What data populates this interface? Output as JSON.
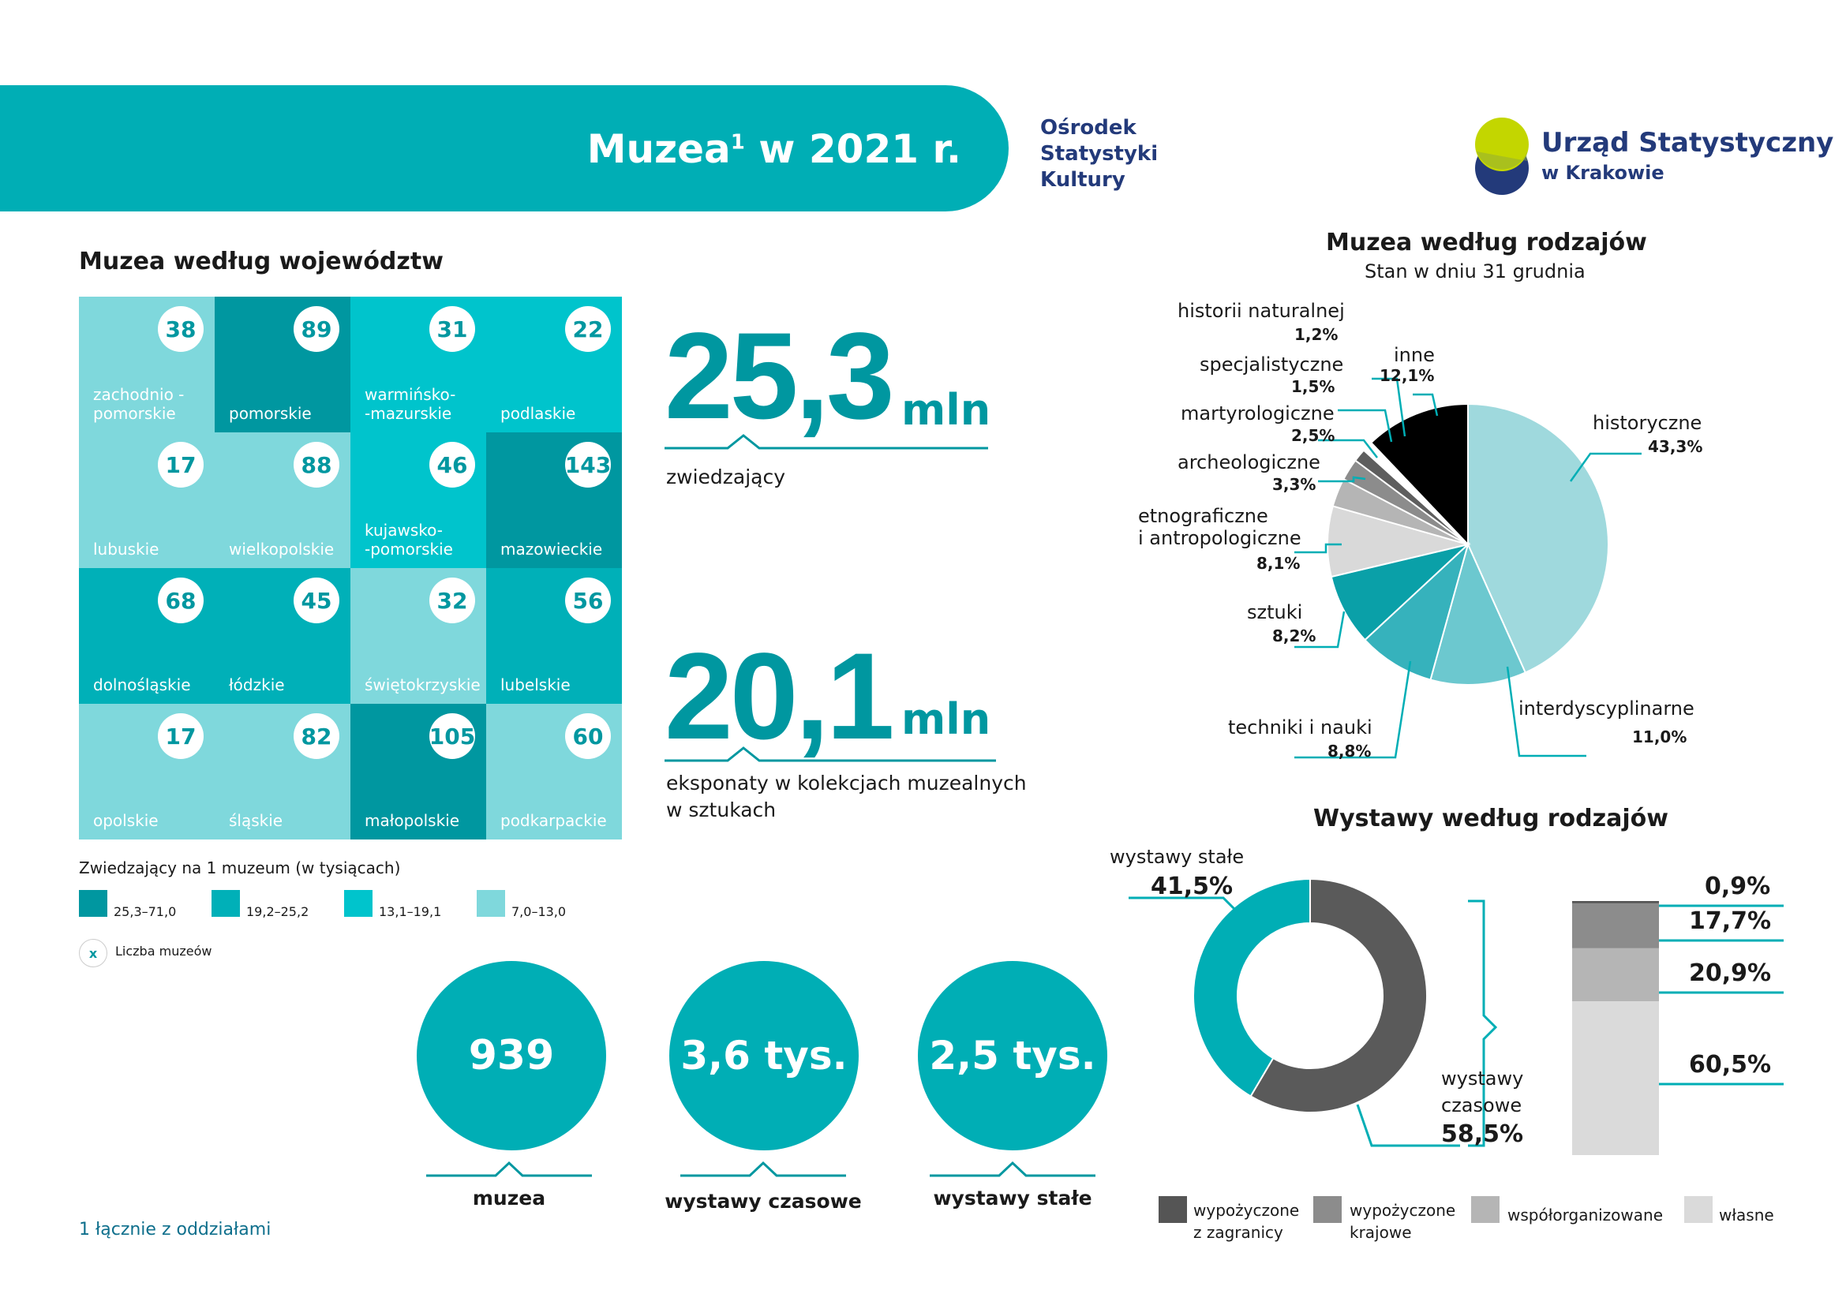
{
  "banner": {
    "title_main": "Muzea",
    "title_sup": "1",
    "title_rest": " w 2021 r.",
    "osk_line1": "Ośrodek",
    "osk_line2": "Statystyki",
    "osk_line3": "Kultury",
    "logo_line1": "Urząd Statystyczny",
    "logo_line2": "w Krakowie"
  },
  "colors": {
    "teal_main": "#00aeb5",
    "class_1": "#0097a0",
    "class_2": "#00b0b8",
    "class_3": "#00c4cc",
    "class_4": "#7fd8dc",
    "dark_navy": "#233a7a",
    "logo_green": "#c3d600"
  },
  "map_section": {
    "title": "Muzea według województw",
    "tiles": [
      {
        "name": "zachodnio -\npomorskie",
        "count": "38",
        "cls": 4
      },
      {
        "name": "pomorskie",
        "count": "89",
        "cls": 1
      },
      {
        "name": "warmińsko-\n-mazurskie",
        "count": "31",
        "cls": 3
      },
      {
        "name": "podlaskie",
        "count": "22",
        "cls": 3
      },
      {
        "name": "lubuskie",
        "count": "17",
        "cls": 4
      },
      {
        "name": "wielkopolskie",
        "count": "88",
        "cls": 4
      },
      {
        "name": "kujawsko-\n-pomorskie",
        "count": "46",
        "cls": 3
      },
      {
        "name": "mazowieckie",
        "count": "143",
        "cls": 1
      },
      {
        "name": "dolnośląskie",
        "count": "68",
        "cls": 2
      },
      {
        "name": "łódzkie",
        "count": "45",
        "cls": 2
      },
      {
        "name": "świętokrzyskie",
        "count": "32",
        "cls": 4
      },
      {
        "name": "lubelskie",
        "count": "56",
        "cls": 2
      },
      {
        "name": "opolskie",
        "count": "17",
        "cls": 4
      },
      {
        "name": "śląskie",
        "count": "82",
        "cls": 4
      },
      {
        "name": "małopolskie",
        "count": "105",
        "cls": 1
      },
      {
        "name": "podkarpackie",
        "count": "60",
        "cls": 4
      }
    ],
    "legend_title": "Zwiedzający na 1 muzeum (w tysiącach)",
    "legend_items": [
      "25,3–71,0",
      "19,2–25,2",
      "13,1–19,1",
      "7,0–13,0"
    ],
    "count_marker": "x",
    "count_legend": "Liczba muzeów"
  },
  "stats": {
    "visitors_value": "25,3",
    "visitors_unit": "mln",
    "visitors_caption": "zwiedzający",
    "exhibits_value": "20,1",
    "exhibits_unit": "mln",
    "exhibits_caption_line1": "eksponaty w kolekcjach muzealnych",
    "exhibits_caption_line2": "w sztukach"
  },
  "circles": [
    {
      "value": "939",
      "label": "muzea"
    },
    {
      "value": "3,6 tys.",
      "label": "wystawy czasowe"
    },
    {
      "value": "2,5 tys.",
      "label": "wystawy stałe"
    }
  ],
  "footnote": "1 łącznie z oddziałami",
  "chart_data": [
    {
      "type": "pie",
      "title": "Muzea według rodzajów",
      "subtitle": "Stan w dniu 31 grudnia",
      "slices": [
        {
          "label": "historyczne",
          "value": 43.3,
          "display": "43,3%",
          "color": "#9fd9dd"
        },
        {
          "label": "interdyscyplinarne",
          "value": 11.0,
          "display": "11,0%",
          "color": "#6cc8cf"
        },
        {
          "label": "techniki i nauki",
          "value": 8.8,
          "display": "8,8%",
          "color": "#36b2bc"
        },
        {
          "label": "sztuki",
          "value": 8.2,
          "display": "8,2%",
          "color": "#0aa0a8"
        },
        {
          "label": "etnograficzne\ni antropologiczne",
          "value": 8.1,
          "display": "8,1%",
          "color": "#d9d9d9"
        },
        {
          "label": "archeologiczne",
          "value": 3.3,
          "display": "3,3%",
          "color": "#b5b5b5"
        },
        {
          "label": "martyrologiczne",
          "value": 2.5,
          "display": "2,5%",
          "color": "#8c8c8c"
        },
        {
          "label": "specjalistyczne",
          "value": 1.5,
          "display": "1,5%",
          "color": "#5e5e5e"
        },
        {
          "label": "historii naturalnej",
          "value": 1.2,
          "display": "1,2%",
          "color": "#ffffff"
        },
        {
          "label": "inne",
          "value": 12.1,
          "display": "12,1%",
          "color": "#000000"
        }
      ]
    },
    {
      "type": "pie",
      "title": "Wystawy według rodzajów",
      "slices": [
        {
          "label": "wystawy stałe",
          "value": 41.5,
          "display": "41,5%",
          "color": "#00aeb5"
        },
        {
          "label": "wystawy\nczasowe",
          "value": 58.5,
          "display": "58,5%",
          "color": "#5a5a5a"
        }
      ]
    },
    {
      "type": "bar",
      "stacked": true,
      "series": [
        {
          "name": "wypożyczone\nz zagranicy",
          "value": 0.9,
          "display": "0,9%",
          "color": "#555555"
        },
        {
          "name": "wypożyczone\nkrajowe",
          "value": 17.7,
          "display": "17,7%",
          "color": "#8c8c8c"
        },
        {
          "name": "współorganizowane",
          "value": 20.9,
          "display": "20,9%",
          "color": "#b5b5b5"
        },
        {
          "name": "własne",
          "value": 60.5,
          "display": "60,5%",
          "color": "#dadada"
        }
      ]
    }
  ]
}
